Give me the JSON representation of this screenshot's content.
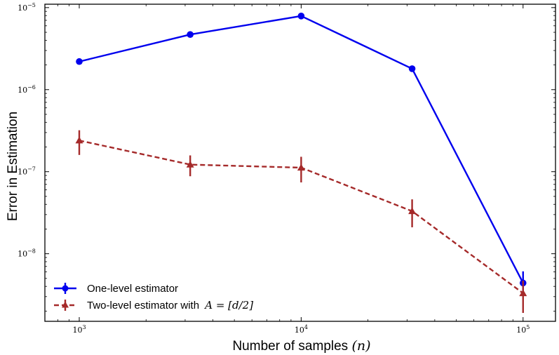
{
  "chart_data": {
    "type": "line",
    "xscale": "log",
    "yscale": "log",
    "xlim": [
      700,
      140000
    ],
    "ylim": [
      1.5e-09,
      1.1e-05
    ],
    "xlabel": "Number of samples",
    "xlabel_math": "(n)",
    "ylabel": "Error in Estimation",
    "x_ticks": [
      {
        "value": 1000,
        "base": "10",
        "exp": "3"
      },
      {
        "value": 10000,
        "base": "10",
        "exp": "4"
      },
      {
        "value": 100000,
        "base": "10",
        "exp": "5"
      }
    ],
    "y_ticks": [
      {
        "value": 1e-08,
        "base": "10",
        "exp": "−8"
      },
      {
        "value": 1e-07,
        "base": "10",
        "exp": "−7"
      },
      {
        "value": 1e-06,
        "base": "10",
        "exp": "−6"
      },
      {
        "value": 1e-05,
        "base": "10",
        "exp": "−5"
      }
    ],
    "series": [
      {
        "name": "One-level estimator",
        "color": "#0000ee",
        "line_style": "solid",
        "marker": "circle",
        "x": [
          1000,
          3162,
          10000,
          31623,
          100000
        ],
        "y": [
          2.2e-06,
          4.7e-06,
          7.9e-06,
          1.8e-06,
          4.4e-09
        ],
        "err_low": [
          null,
          null,
          null,
          null,
          3.2e-09
        ],
        "err_high": [
          null,
          null,
          null,
          null,
          6.1e-09
        ]
      },
      {
        "name": "Two-level estimator with",
        "name_math": "A = [d/2]",
        "color": "#a52a2a",
        "line_style": "dashed",
        "marker": "triangle",
        "x": [
          1000,
          3162,
          10000,
          31623,
          100000
        ],
        "y": [
          2.4e-07,
          1.22e-07,
          1.12e-07,
          3.3e-08,
          3.3e-09
        ],
        "err_low": [
          1.6e-07,
          8.8e-08,
          7.4e-08,
          2.1e-08,
          1.9e-09
        ],
        "err_high": [
          3.2e-07,
          1.58e-07,
          1.52e-07,
          4.6e-08,
          4.7e-09
        ]
      }
    ],
    "legend": "bottom-left"
  }
}
